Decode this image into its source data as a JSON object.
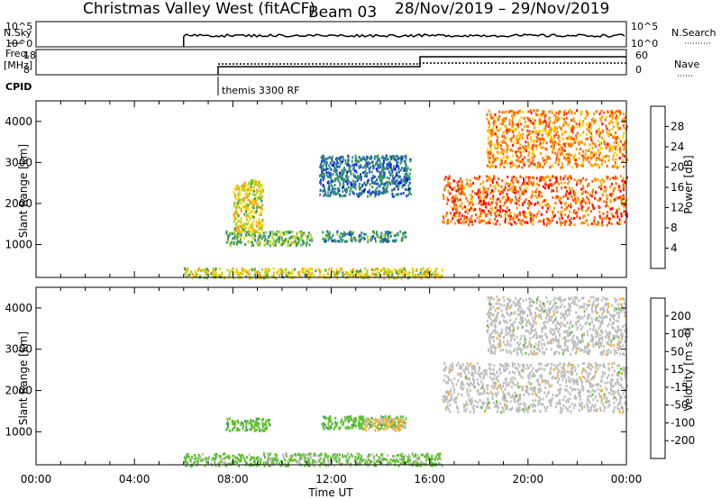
{
  "header": {
    "station": "Christmas Valley West (fitACF)",
    "beam": "Beam 03",
    "dates": "28/Nov/2019 – 29/Nov/2019"
  },
  "mini_panels": {
    "nsky_label": "N.Sky",
    "nsky_ticks": [
      "10^5",
      "10^0"
    ],
    "nsearch_label": "N.Search",
    "nsearch_ticks": [
      "10^5",
      "10^0"
    ],
    "freq_label": "Freq.",
    "freq_unit": "[MHz]",
    "freq_ticks": [
      "18",
      "8"
    ],
    "nave_label": "Nave",
    "nave_ticks": [
      "60",
      "0"
    ],
    "cpid_label": "CPID",
    "cpid_value": "themis 3300 RF"
  },
  "chart_data": [
    {
      "type": "heatmap",
      "title": "",
      "ylabel": "Slant Range [km]",
      "xlabel": "",
      "ylim": [
        200,
        4500
      ],
      "xlim": [
        0,
        24
      ],
      "yticks": [
        "1000",
        "2000",
        "3000",
        "4000"
      ],
      "colorbar": {
        "label": "Power [dB]",
        "ticks": [
          "4",
          "8",
          "12",
          "16",
          "20",
          "24",
          "28"
        ],
        "range": [
          0,
          32
        ],
        "colors": [
          "#0000ff",
          "#1f4fc8",
          "#2e8b8b",
          "#3c9a50",
          "#a8d020",
          "#ffd400",
          "#ff9a00",
          "#ff5a00",
          "#ff0000"
        ]
      },
      "regions": [
        {
          "name": "ground scatter",
          "x": [
            6.0,
            16.5
          ],
          "y": [
            200,
            450
          ],
          "level": 18
        },
        {
          "name": "near echo",
          "x": [
            7.7,
            11.2
          ],
          "y": [
            1000,
            1350
          ],
          "level": 14
        },
        {
          "name": "near echo 2",
          "x": [
            11.6,
            15.0
          ],
          "y": [
            1100,
            1350
          ],
          "level": 10
        },
        {
          "name": "mid echo",
          "x": [
            8.0,
            9.2
          ],
          "y": [
            1300,
            2600
          ],
          "level": 18
        },
        {
          "name": "far echo",
          "x": [
            11.5,
            15.2
          ],
          "y": [
            2200,
            3200
          ],
          "level": 8
        },
        {
          "name": "evening band",
          "x": [
            16.5,
            24.0
          ],
          "y": [
            1500,
            2700
          ],
          "level": 26
        },
        {
          "name": "high band",
          "x": [
            18.3,
            24.0
          ],
          "y": [
            2900,
            4300
          ],
          "level": 24
        }
      ]
    },
    {
      "type": "heatmap",
      "title": "",
      "ylabel": "Slant Range [km]",
      "xlabel": "Time UT",
      "ylim": [
        200,
        4500
      ],
      "xlim": [
        0,
        24
      ],
      "yticks": [
        "1000",
        "2000",
        "3000",
        "4000"
      ],
      "xticks": [
        "00:00",
        "04:00",
        "08:00",
        "12:00",
        "16:00",
        "20:00",
        "00:00"
      ],
      "colorbar": {
        "label": "Velocity [m s⁻¹]",
        "ticks": [
          "200",
          "100",
          "50",
          "15",
          "-15",
          "-50",
          "-100",
          "-200"
        ],
        "range": [
          -250,
          250
        ],
        "colors": [
          "#2040c0",
          "#3a70a0",
          "#409a60",
          "#60c030",
          "#bebebe",
          "#f0b030",
          "#ff8000",
          "#ff4000",
          "#ff0000"
        ]
      },
      "regions": [
        {
          "name": "ground scatter",
          "x": [
            6.0,
            16.5
          ],
          "y": [
            200,
            500
          ],
          "level": -40
        },
        {
          "name": "near echo",
          "x": [
            7.7,
            9.5
          ],
          "y": [
            1050,
            1350
          ],
          "level": -60
        },
        {
          "name": "near echo 2",
          "x": [
            11.6,
            15.0
          ],
          "y": [
            1100,
            1400
          ],
          "level": -60
        },
        {
          "name": "green patch",
          "x": [
            13.3,
            15.0
          ],
          "y": [
            1050,
            1350
          ],
          "level": 40
        },
        {
          "name": "evening band",
          "x": [
            16.5,
            24.0
          ],
          "y": [
            1500,
            2700
          ],
          "level": 0
        },
        {
          "name": "high band",
          "x": [
            18.3,
            24.0
          ],
          "y": [
            2900,
            4300
          ],
          "level": 0
        }
      ]
    }
  ]
}
